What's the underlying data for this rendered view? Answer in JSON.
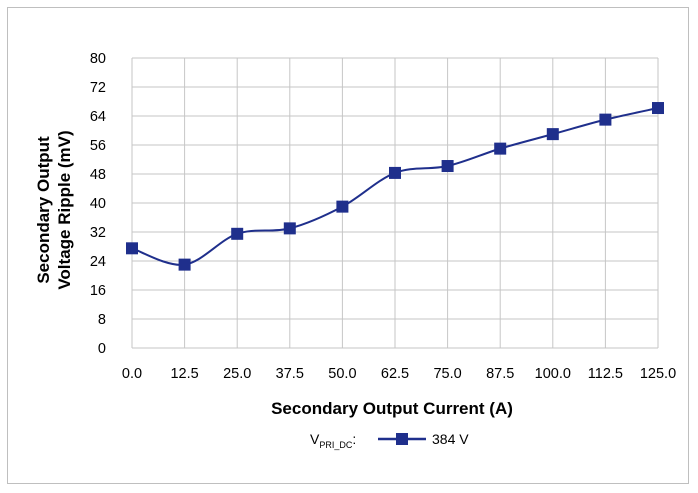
{
  "chart_data": {
    "type": "line",
    "xlabel": "Secondary Output Current (A)",
    "ylabel_lines": [
      "Secondary Output",
      "Voltage Ripple (mV)"
    ],
    "ylim": [
      0,
      80
    ],
    "yticks": [
      0,
      8,
      16,
      24,
      32,
      40,
      48,
      56,
      64,
      72,
      80
    ],
    "x_tick_labels": [
      "0.0",
      "12.5",
      "25.0",
      "37.5",
      "50.0",
      "62.5",
      "75.0",
      "87.5",
      "100.0",
      "112.5",
      "125.0"
    ],
    "x": [
      0.0,
      12.5,
      25.0,
      37.5,
      50.0,
      62.5,
      75.0,
      87.5,
      100.0,
      112.5,
      125.0
    ],
    "grid": true,
    "legend_placement": "bottom-center",
    "legend_prefix": "V",
    "legend_prefix_sub": "PRI_DC",
    "legend_prefix_suffix": ":",
    "series": [
      {
        "name": "384 V",
        "color": "#1f2f8c",
        "marker": "square",
        "values": [
          27.5,
          23,
          31.5,
          33,
          39,
          48.3,
          50.2,
          55,
          59,
          63,
          66.2
        ]
      }
    ]
  }
}
